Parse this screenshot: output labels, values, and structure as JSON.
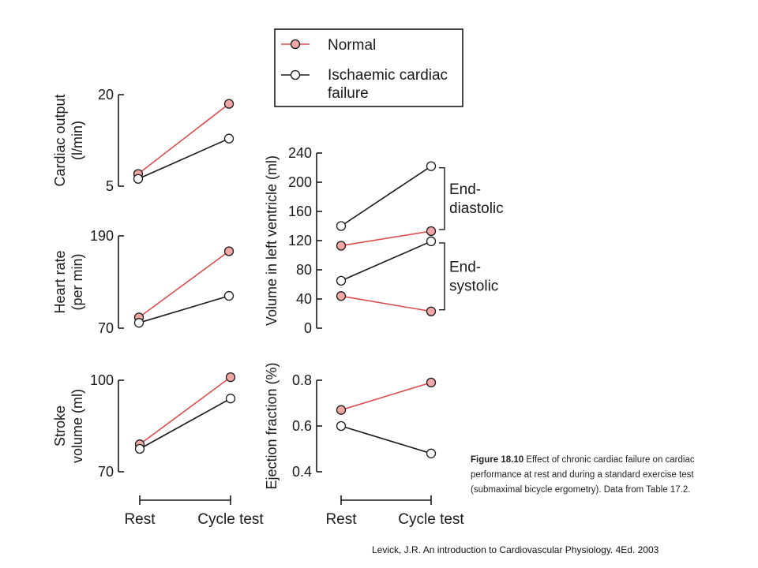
{
  "legend": {
    "items": [
      {
        "label": "Normal",
        "filled": true
      },
      {
        "label": "Ischaemic cardiac failure",
        "label_lines": [
          "Ischaemic cardiac",
          "failure"
        ],
        "filled": false
      }
    ]
  },
  "colors": {
    "normal": "#d94f4f",
    "normal_fill": "#f2a7a7",
    "failure": "#1a1a1a",
    "failure_fill": "#ffffff",
    "axis": "#1a1a1a"
  },
  "x_categories": [
    "Rest",
    "Cycle test"
  ],
  "chart_data": [
    {
      "type": "line",
      "ylabel": "Cardiac output\n(l/min)",
      "yticks": [
        5,
        20
      ],
      "ylim": [
        5,
        20
      ],
      "categories": [
        "Rest",
        "Cycle test"
      ],
      "series": [
        {
          "name": "Normal",
          "values": [
            7,
            18.5
          ]
        },
        {
          "name": "Ischaemic cardiac failure",
          "values": [
            6.2,
            12.8
          ]
        }
      ]
    },
    {
      "type": "line",
      "ylabel": "Heart rate\n(per min)",
      "yticks": [
        70,
        190
      ],
      "ylim": [
        70,
        190
      ],
      "categories": [
        "Rest",
        "Cycle test"
      ],
      "series": [
        {
          "name": "Normal",
          "values": [
            84,
            170
          ]
        },
        {
          "name": "Ischaemic cardiac failure",
          "values": [
            77,
            112
          ]
        }
      ]
    },
    {
      "type": "line",
      "ylabel": "Stroke\nvolume (ml)",
      "yticks": [
        70,
        100
      ],
      "ylim": [
        70,
        100
      ],
      "categories": [
        "Rest",
        "Cycle test"
      ],
      "series": [
        {
          "name": "Normal",
          "values": [
            79,
            101
          ]
        },
        {
          "name": "Ischaemic cardiac failure",
          "values": [
            77.5,
            94
          ]
        }
      ]
    },
    {
      "type": "line",
      "ylabel": "Volume in left ventricle (ml)",
      "yticks": [
        0,
        40,
        80,
        120,
        160,
        200,
        240
      ],
      "ylim": [
        0,
        240
      ],
      "categories": [
        "Rest",
        "Cycle test"
      ],
      "series": [
        {
          "name": "Normal",
          "group": "End-diastolic",
          "values": [
            113,
            133
          ]
        },
        {
          "name": "Ischaemic cardiac failure",
          "group": "End-diastolic",
          "values": [
            140,
            222
          ]
        },
        {
          "name": "Normal",
          "group": "End-systolic",
          "values": [
            44,
            23
          ]
        },
        {
          "name": "Ischaemic cardiac failure",
          "group": "End-systolic",
          "values": [
            65,
            119
          ]
        }
      ],
      "brackets": [
        {
          "label": "End-\ndiastolic",
          "from": 133,
          "to": 222
        },
        {
          "label": "End-\nsystolic",
          "from": 23,
          "to": 119
        }
      ]
    },
    {
      "type": "line",
      "ylabel": "Ejection fraction (%)",
      "yticks": [
        0.4,
        0.6,
        0.8
      ],
      "ylim": [
        0.4,
        0.8
      ],
      "categories": [
        "Rest",
        "Cycle test"
      ],
      "series": [
        {
          "name": "Normal",
          "values": [
            0.67,
            0.79
          ]
        },
        {
          "name": "Ischaemic cardiac failure",
          "values": [
            0.6,
            0.48
          ]
        }
      ]
    }
  ],
  "caption": {
    "figure_number": "Figure 18.10",
    "text": "Effect of chronic cardiac failure on cardiac performance at rest and during a standard exercise test (submaximal bicycle ergometry). Data from Table 17.2."
  },
  "credit": "Levick, J.R. An introduction to Cardiovascular Physiology. 4Ed. 2003"
}
